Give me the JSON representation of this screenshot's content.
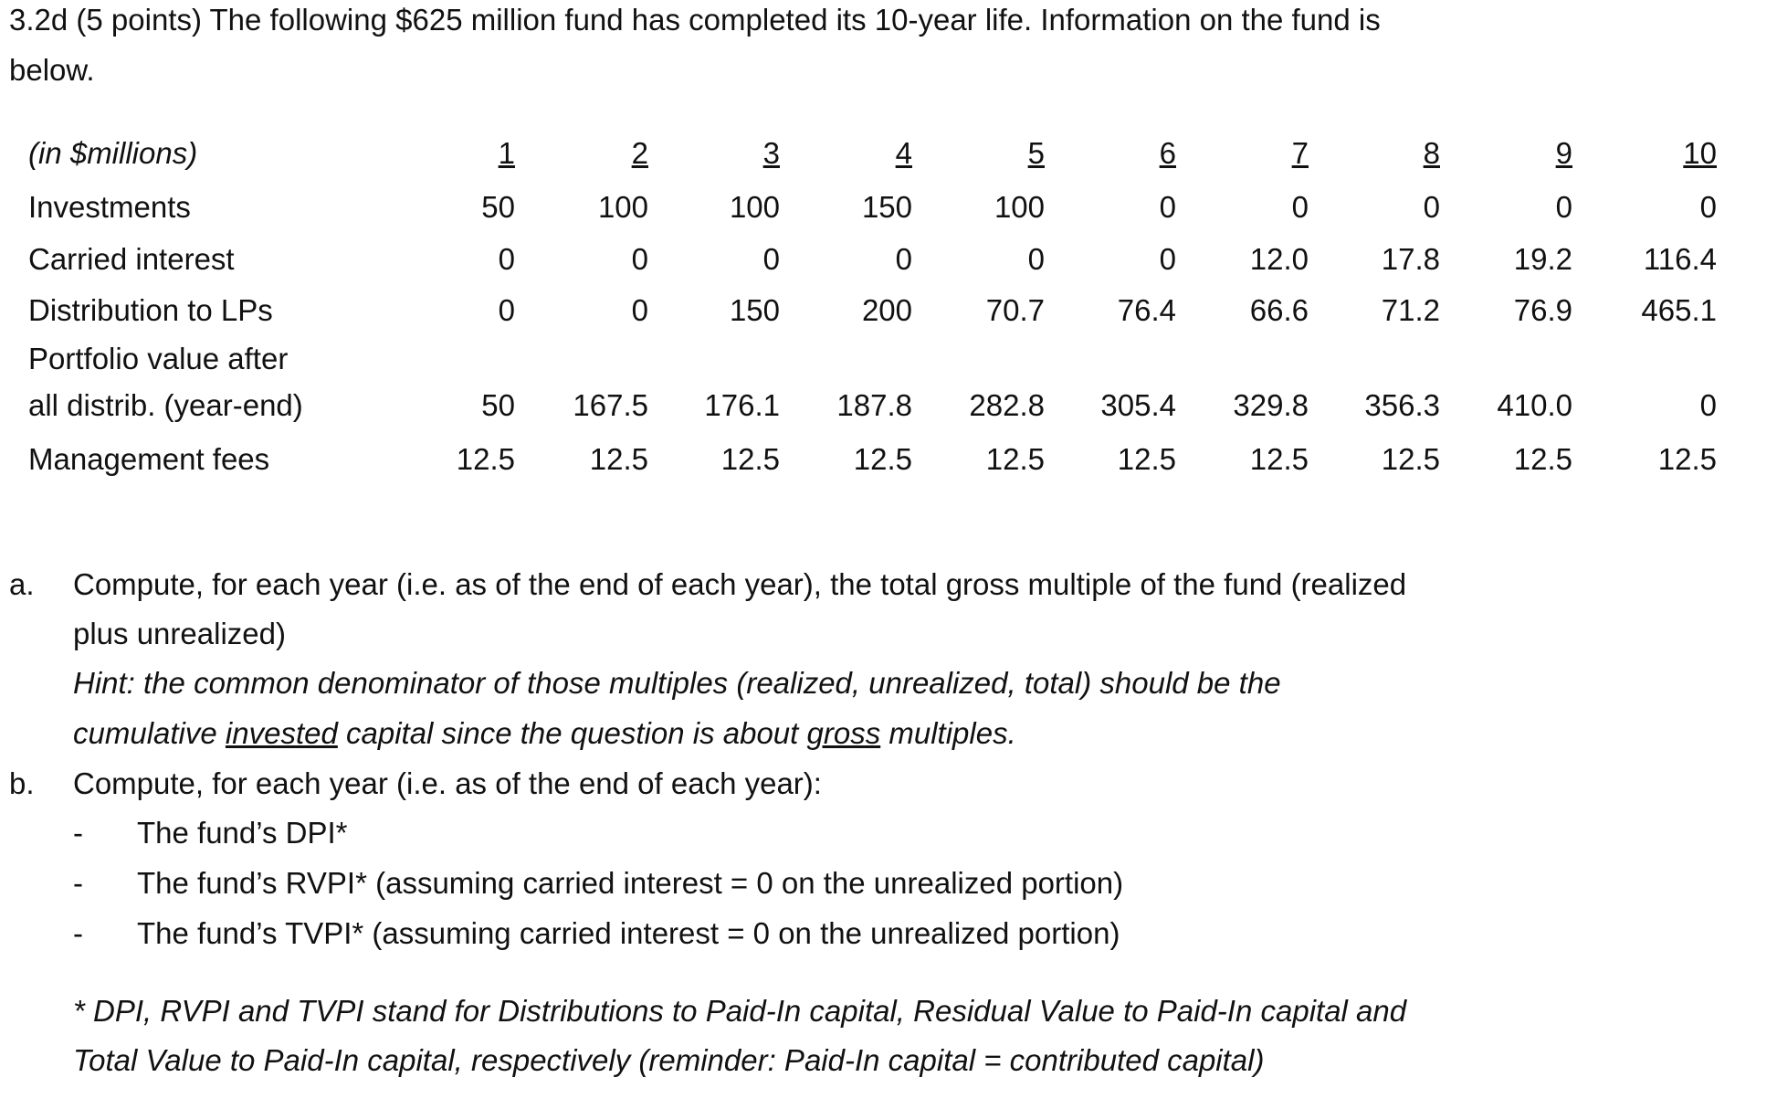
{
  "header": {
    "lines": [
      "3.2d (5 points) The following $625 million fund has completed its 10-year life. Information on the fund is",
      "below."
    ]
  },
  "table": {
    "unit_label": "(in $millions)",
    "columns": [
      "1",
      "2",
      "3",
      "4",
      "5",
      "6",
      "7",
      "8",
      "9",
      "10"
    ],
    "rows": [
      {
        "label": [
          "Investments"
        ],
        "cells": [
          "50",
          "100",
          "100",
          "150",
          "100",
          "0",
          "0",
          "0",
          "0",
          "0"
        ]
      },
      {
        "label": [
          "Carried interest"
        ],
        "cells": [
          "0",
          "0",
          "0",
          "0",
          "0",
          "0",
          "12.0",
          "17.8",
          "19.2",
          "116.4"
        ]
      },
      {
        "label": [
          "Distribution to LPs"
        ],
        "cells": [
          "0",
          "0",
          "150",
          "200",
          "70.7",
          "76.4",
          "66.6",
          "71.2",
          "76.9",
          "465.1"
        ]
      },
      {
        "label": [
          "Portfolio value after",
          "all distrib. (year-end)"
        ],
        "cells": [
          "50",
          "167.5",
          "176.1",
          "187.8",
          "282.8",
          "305.4",
          "329.8",
          "356.3",
          "410.0",
          "0"
        ]
      },
      {
        "label": [
          "Management fees"
        ],
        "cells": [
          "12.5",
          "12.5",
          "12.5",
          "12.5",
          "12.5",
          "12.5",
          "12.5",
          "12.5",
          "12.5",
          "12.5"
        ]
      }
    ]
  },
  "questions": [
    {
      "marker": "a.",
      "lines": [
        "Compute, for each year (i.e. as of the end of each year), the total gross multiple of the fund (realized",
        "plus unrealized)"
      ],
      "hint": [
        [
          {
            "text": "Hint: the common denominator of those multiples (realized, unrealized, total) should be the"
          }
        ],
        [
          {
            "text": "cumulative "
          },
          {
            "text": "invested",
            "underline": true
          },
          {
            "text": " capital since the question is about "
          },
          {
            "text": "gross",
            "underline": true
          },
          {
            "text": " multiples."
          }
        ]
      ]
    },
    {
      "marker": "b.",
      "lines": [
        "Compute, for each year (i.e. as of the end of each year):"
      ],
      "bullets": [
        {
          "marker": "-",
          "text": "The fund’s DPI*"
        },
        {
          "marker": "-",
          "text": "The fund’s RVPI* (assuming carried interest = 0 on the unrealized portion)"
        },
        {
          "marker": "-",
          "text": "The fund’s TVPI* (assuming carried interest = 0 on the unrealized portion)"
        }
      ]
    }
  ],
  "footnote": [
    "* DPI, RVPI and TVPI stand for Distributions to Paid-In capital, Residual Value to Paid-In capital and",
    "Total Value to Paid-In capital, respectively (reminder: Paid-In capital = contributed capital)"
  ]
}
